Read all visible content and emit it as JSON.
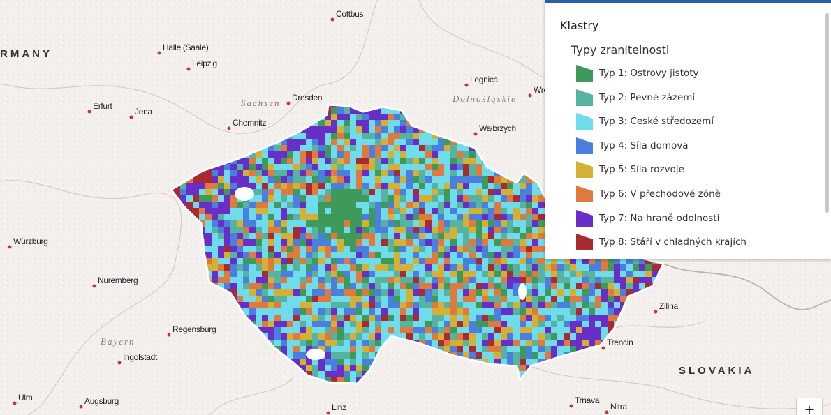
{
  "map": {
    "cities": [
      "Cottbus",
      "Halle (Saale)",
      "Leipzig",
      "Dresden",
      "Chemnitz",
      "Erfurt",
      "Jena",
      "Legnica",
      "Wro",
      "Wałbrzych",
      "Würzburg",
      "Nuremberg",
      "Regensburg",
      "Ingolstadt",
      "Ulm",
      "Augsburg",
      "Linz",
      "Trnava",
      "Nitra",
      "Trencin",
      "Zilina"
    ],
    "regions": [
      "Sachsen",
      "Dolnośląskie",
      "Bayern"
    ],
    "countries": [
      "RMANY",
      "SLOVAKIA"
    ]
  },
  "legend": {
    "title": "Klastry",
    "subtitle": "Typy zranitelnosti",
    "items": [
      {
        "name": "Typ 1: Ostrovy jistoty",
        "color": "#3d9a5a"
      },
      {
        "name": "Typ 2: Pevné zázemí",
        "color": "#55b3a0"
      },
      {
        "name": "Typ 3: České středozemí",
        "color": "#6fdcec"
      },
      {
        "name": "Typ 4: Síla domova",
        "color": "#4a7fe0"
      },
      {
        "name": "Typ 5: Síla rozvoje",
        "color": "#d4b035"
      },
      {
        "name": "Typ 6: V přechodové zóně",
        "color": "#e07a3c"
      },
      {
        "name": "Typ 7: Na hraně odolnosti",
        "color": "#6a2ec8"
      },
      {
        "name": "Typ 8: Stáří v chladných krajích",
        "color": "#a82a33"
      }
    ]
  },
  "controls": {
    "zoom_in": "+"
  }
}
